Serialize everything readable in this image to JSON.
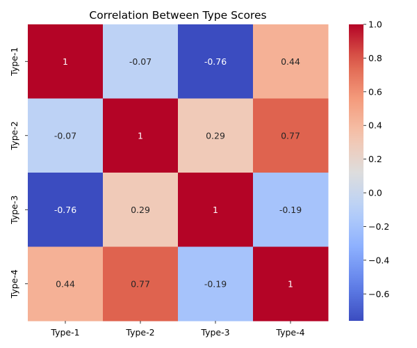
{
  "chart_data": {
    "type": "heatmap",
    "title": "Correlation Between Type Scores",
    "xlabel": "",
    "ylabel": "",
    "x_categories": [
      "Type-1",
      "Type-2",
      "Type-3",
      "Type-4"
    ],
    "y_categories": [
      "Type-1",
      "Type-2",
      "Type-3",
      "Type-4"
    ],
    "values": [
      [
        1,
        -0.07,
        -0.76,
        0.44
      ],
      [
        -0.07,
        1,
        0.29,
        0.77
      ],
      [
        -0.76,
        0.29,
        1,
        -0.19
      ],
      [
        0.44,
        0.77,
        -0.19,
        1
      ]
    ],
    "value_labels": [
      [
        "1",
        "-0.07",
        "-0.76",
        "0.44"
      ],
      [
        "-0.07",
        "1",
        "0.29",
        "0.77"
      ],
      [
        "-0.76",
        "0.29",
        "1",
        "-0.19"
      ],
      [
        "0.44",
        "0.77",
        "-0.19",
        "1"
      ]
    ],
    "colormap": "coolwarm",
    "colorbar": {
      "range": [
        -0.76,
        1.0
      ],
      "ticks": [
        -0.6,
        -0.4,
        -0.2,
        0.0,
        0.2,
        0.4,
        0.6,
        0.8,
        1.0
      ],
      "tick_labels": [
        "−0.6",
        "−0.4",
        "−0.2",
        "0.0",
        "0.2",
        "0.4",
        "0.6",
        "0.8",
        "1.0"
      ]
    }
  }
}
